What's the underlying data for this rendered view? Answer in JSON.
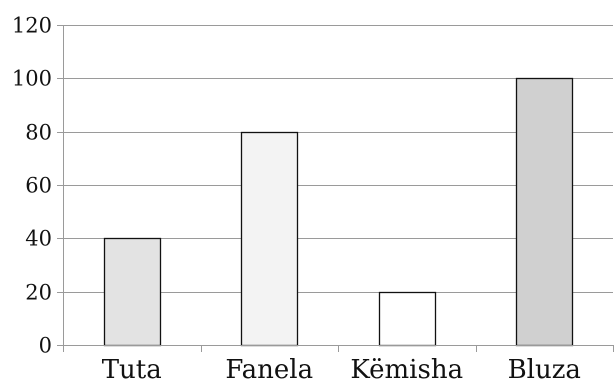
{
  "chart_data": {
    "type": "bar",
    "categories": [
      "Tuta",
      "Fanela",
      "Këmisha",
      "Bluza"
    ],
    "values": [
      40,
      80,
      20,
      100
    ],
    "title": "",
    "xlabel": "",
    "ylabel": "",
    "ylim": [
      0,
      120
    ],
    "yticks": [
      0,
      20,
      40,
      60,
      80,
      100,
      120
    ],
    "grid": true,
    "legend": "none",
    "bar_colors": [
      "#e3e3e3",
      "#f3f3f3",
      "#ffffff",
      "#d0d0d0"
    ],
    "bar_edge_color": "#111111",
    "grid_color": "#9a9a9a",
    "axis_color": "#9a9a9a"
  }
}
